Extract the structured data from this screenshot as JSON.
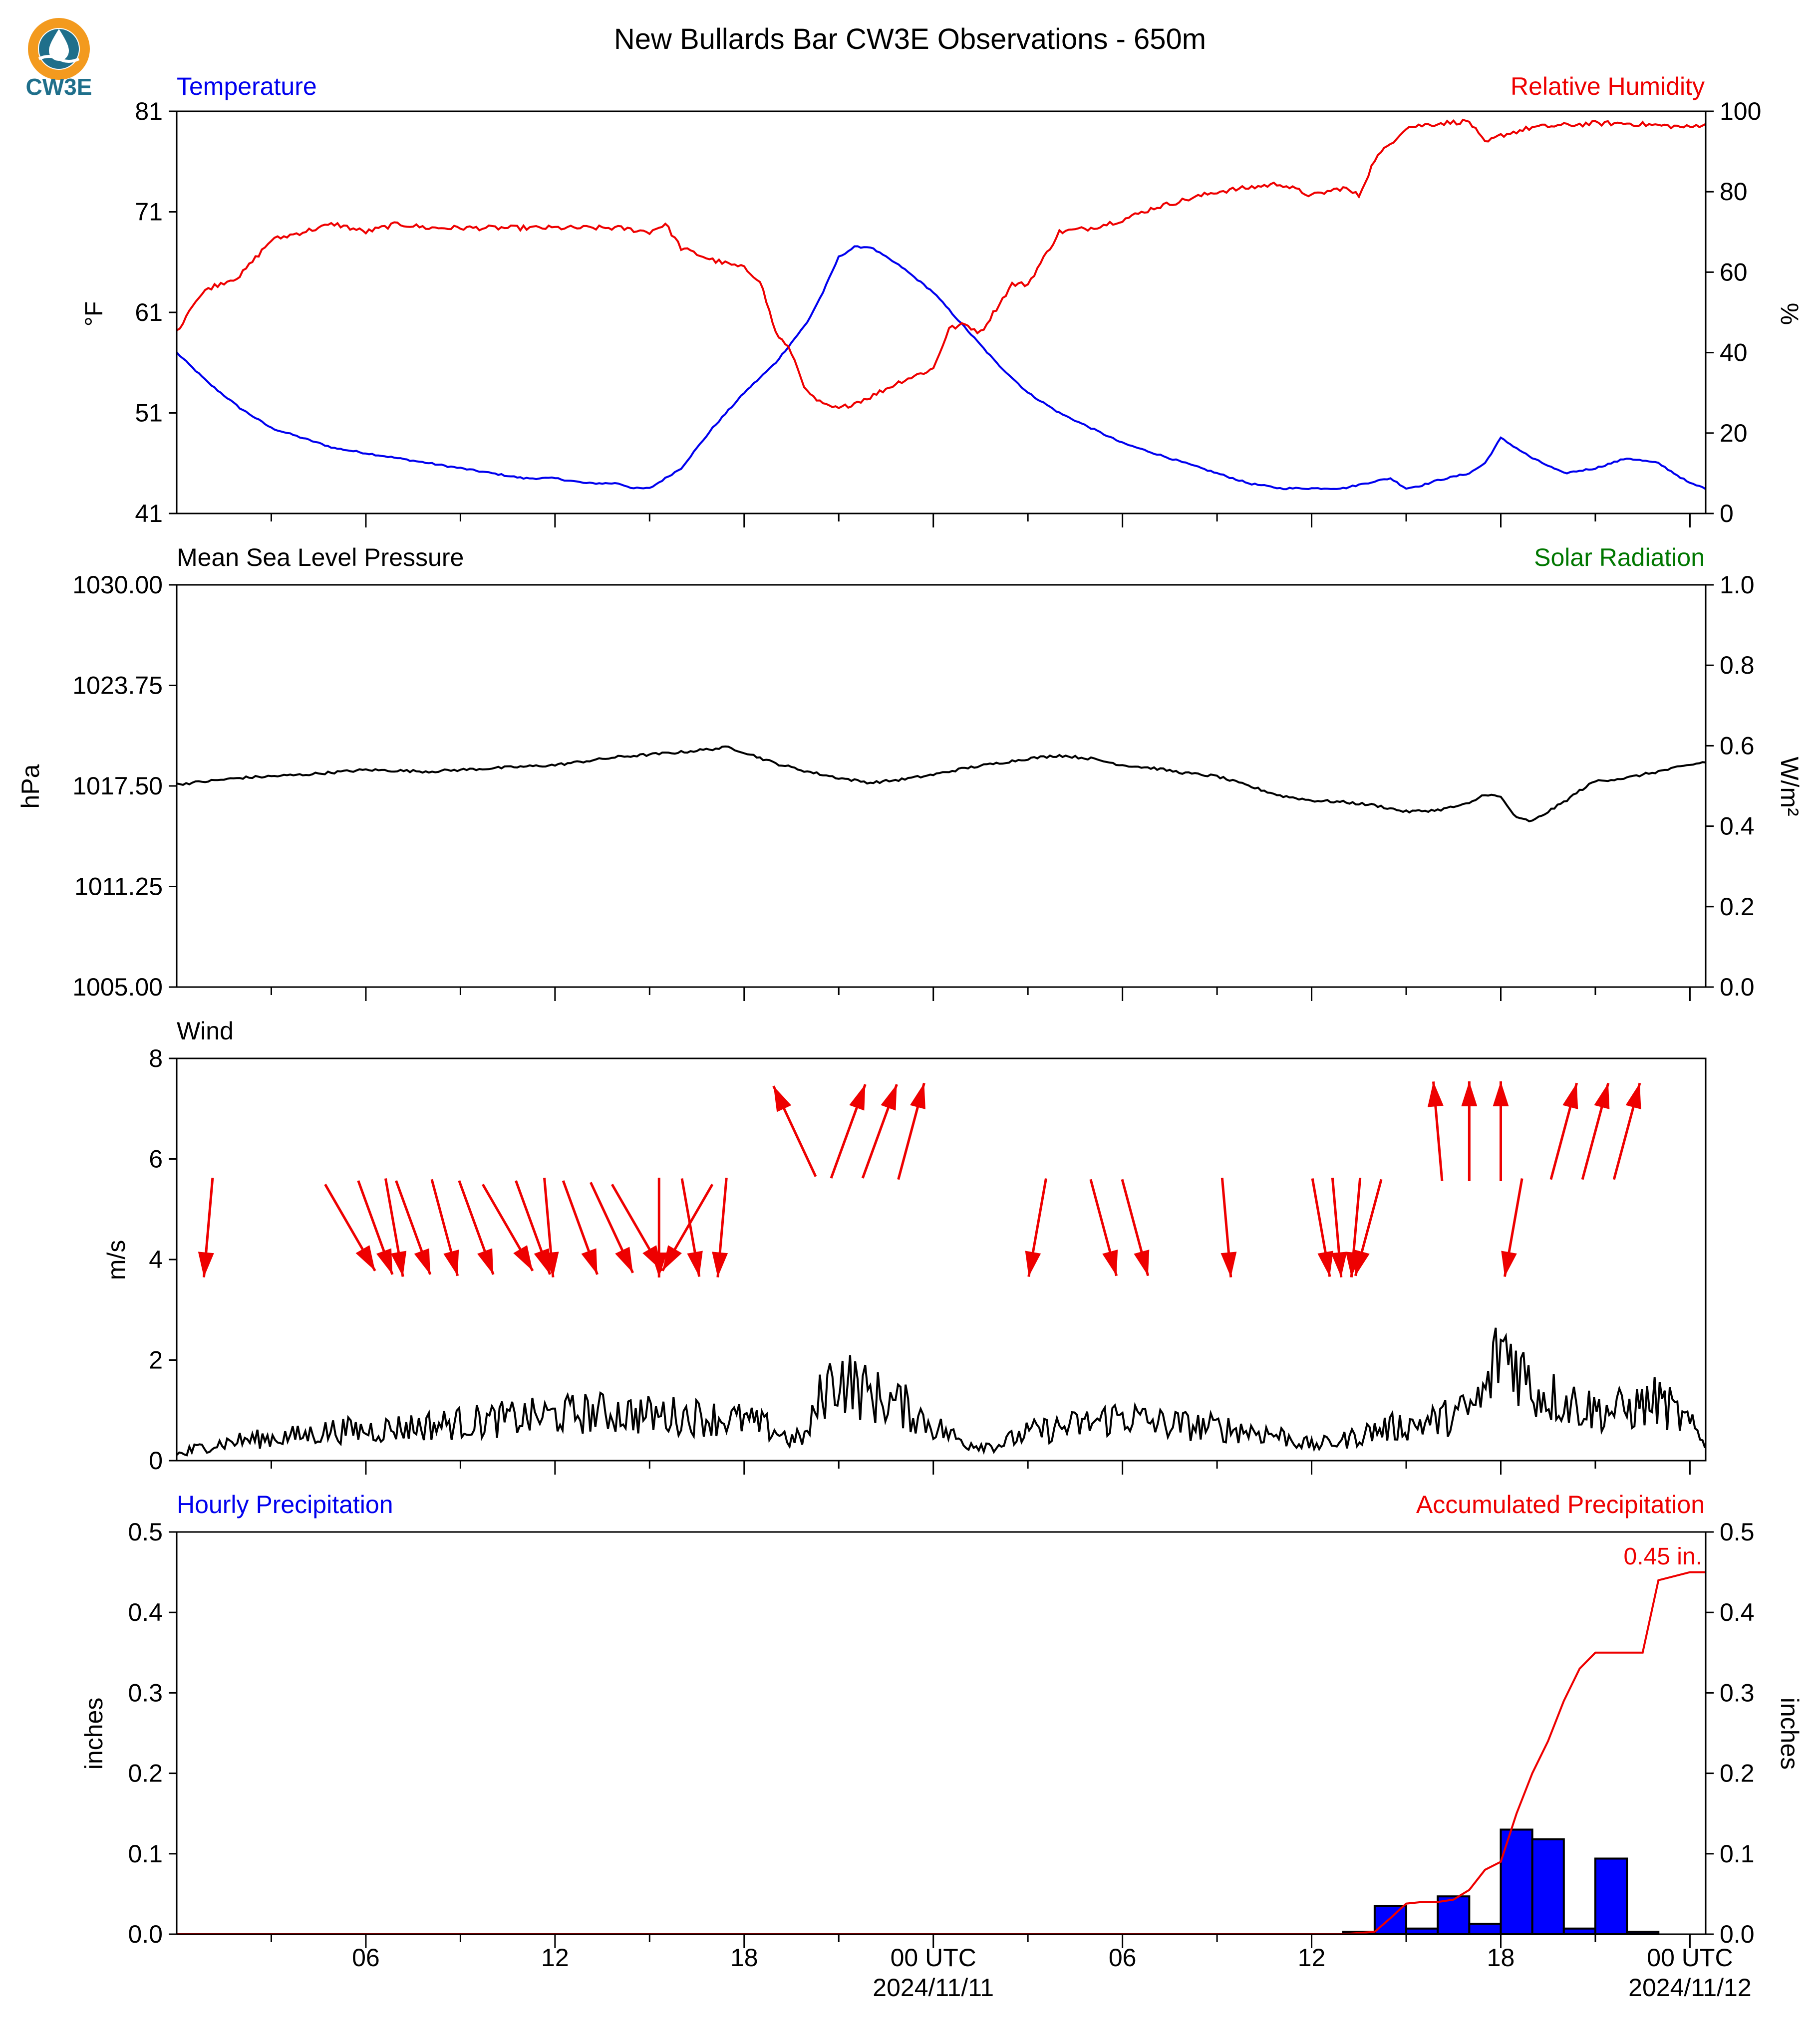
{
  "title": "New Bullards Bar CW3E Observations - 650m",
  "logo": {
    "text": "CW3E",
    "icon": "cw3e-logo-icon",
    "colors": {
      "orange": "#f39a1e",
      "blue": "#1f6f8b",
      "teal": "#2a9fc0"
    }
  },
  "x_ticks": [
    {
      "h": 6,
      "label": "06"
    },
    {
      "h": 12,
      "label": "12"
    },
    {
      "h": 18,
      "label": "18"
    },
    {
      "h": 24,
      "label": "00 UTC",
      "date": "2024/11/11"
    },
    {
      "h": 30,
      "label": "06"
    },
    {
      "h": 36,
      "label": "12"
    },
    {
      "h": 42,
      "label": "18"
    },
    {
      "h": 48,
      "label": "00 UTC",
      "date": "2024/11/12"
    }
  ],
  "colors": {
    "blue": "#0000ee",
    "red": "#ee0000",
    "green": "#007700",
    "black": "#000000",
    "bar_fill": "#0000ff"
  },
  "panels": {
    "temp": {
      "left_label": "Temperature",
      "right_label": "Relative Humidity",
      "left_unit": "°F",
      "right_unit": "%",
      "left_ticks": [
        "41",
        "51",
        "61",
        "71",
        "81"
      ],
      "left_range": [
        41,
        81
      ],
      "right_ticks": [
        "0",
        "20",
        "40",
        "60",
        "80",
        "100"
      ],
      "right_range": [
        0,
        100
      ]
    },
    "pressure": {
      "left_label": "Mean Sea Level Pressure",
      "right_label": "Solar Radiation",
      "left_unit": "hPa",
      "right_unit": "W/m²",
      "left_ticks": [
        "1005.00",
        "1011.25",
        "1017.50",
        "1023.75",
        "1030.00"
      ],
      "left_range": [
        1005,
        1030
      ],
      "right_ticks": [
        "0.0",
        "0.2",
        "0.4",
        "0.6",
        "0.8",
        "1.0"
      ],
      "right_range": [
        0,
        1
      ]
    },
    "wind": {
      "left_label": "Wind",
      "left_unit": "m/s",
      "left_ticks": [
        "0",
        "2",
        "4",
        "6",
        "8"
      ],
      "left_range": [
        0,
        8
      ]
    },
    "precip": {
      "left_label": "Hourly Precipitation",
      "right_label": "Accumulated Precipitation",
      "left_unit": "inches",
      "right_unit": "inches",
      "left_ticks": [
        "0.0",
        "0.1",
        "0.2",
        "0.3",
        "0.4",
        "0.5"
      ],
      "left_range": [
        0,
        0.5
      ],
      "right_ticks": [
        "0.0",
        "0.1",
        "0.2",
        "0.3",
        "0.4",
        "0.5"
      ],
      "right_range": [
        0,
        0.5
      ],
      "total_label": "0.45 in."
    }
  },
  "chart_data": [
    {
      "type": "line",
      "title": "Temperature / Relative Humidity",
      "xlim": [
        0,
        48.5
      ],
      "series": [
        {
          "name": "Temperature",
          "axis": "left",
          "color": "#0000ee",
          "x": [
            0,
            1,
            2,
            3,
            4,
            5,
            6,
            7,
            8,
            9,
            10,
            11,
            12,
            13,
            14,
            14.5,
            15,
            16,
            17,
            18,
            19,
            20,
            20.5,
            21,
            21.5,
            22,
            23,
            24,
            25,
            26,
            27,
            28,
            29,
            30,
            31,
            32,
            33,
            34,
            35,
            36,
            37,
            38,
            38.5,
            39,
            39.5,
            40,
            41,
            41.5,
            42,
            43,
            44,
            45,
            46,
            47,
            48,
            48.5
          ],
          "y": [
            57,
            54,
            51.5,
            49.5,
            48.5,
            47.5,
            47,
            46.5,
            46,
            45.5,
            45,
            44.5,
            44.5,
            44,
            44,
            43.5,
            43.5,
            45.5,
            49.5,
            53,
            56,
            60,
            63,
            66.5,
            67.5,
            67.5,
            65.5,
            63,
            59.5,
            56,
            53,
            51,
            49.5,
            48,
            47,
            46,
            45,
            44,
            43.5,
            43.5,
            43.5,
            44.2,
            44.5,
            43.5,
            43.8,
            44.3,
            45,
            46,
            48.5,
            46.5,
            45,
            45.5,
            46.5,
            46,
            44,
            43.5
          ]
        },
        {
          "name": "Relative Humidity",
          "axis": "right",
          "color": "#ee0000",
          "x": [
            0,
            0.5,
            1,
            2,
            3,
            4,
            5,
            6,
            7,
            8,
            9,
            10,
            11,
            12,
            13,
            14,
            15,
            15.5,
            16,
            17,
            18,
            18.5,
            19,
            19.5,
            20,
            20.5,
            21,
            22,
            23,
            24,
            24.5,
            25,
            25.5,
            26,
            26.5,
            27,
            28,
            29,
            30,
            31,
            32,
            33,
            34,
            35,
            36,
            37,
            37.5,
            38,
            39,
            40,
            41,
            41.5,
            42,
            43,
            44,
            45,
            46,
            47,
            48,
            48.5
          ],
          "y": [
            45,
            52,
            56,
            59,
            68,
            70,
            72,
            70,
            72,
            71,
            71,
            71,
            71,
            71,
            71,
            71,
            70,
            72,
            66,
            63,
            61,
            58,
            45,
            40,
            30,
            27,
            26,
            29,
            33,
            36,
            46,
            47,
            45,
            51,
            57,
            57,
            70,
            71,
            73,
            76,
            78,
            80,
            81,
            82,
            79,
            81,
            79,
            88,
            96,
            97,
            97.5,
            92,
            94,
            96,
            96.5,
            97,
            97,
            96.5,
            96,
            97
          ]
        }
      ]
    },
    {
      "type": "line",
      "title": "Mean Sea Level Pressure / Solar Radiation",
      "xlim": [
        0,
        48.5
      ],
      "series": [
        {
          "name": "Mean Sea Level Pressure",
          "axis": "left",
          "color": "#000000",
          "x": [
            0,
            2,
            4,
            6,
            8,
            10,
            12,
            14,
            16,
            17,
            17.5,
            18,
            19,
            20,
            21,
            22,
            23,
            24,
            25,
            26,
            27,
            28,
            29,
            30,
            31,
            32,
            33,
            34,
            35,
            36,
            37,
            38,
            39,
            40,
            41,
            41.5,
            42,
            42.5,
            43,
            44,
            44.5,
            45,
            46,
            47,
            48,
            48.5
          ],
          "y": [
            1017.6,
            1018,
            1018.2,
            1018.5,
            1018.4,
            1018.6,
            1018.8,
            1019.3,
            1019.6,
            1019.8,
            1019.9,
            1019.6,
            1018.9,
            1018.4,
            1018,
            1017.7,
            1017.9,
            1018.2,
            1018.6,
            1018.9,
            1019.2,
            1019.4,
            1019.2,
            1018.8,
            1018.6,
            1018.3,
            1018.1,
            1017.5,
            1016.9,
            1016.6,
            1016.5,
            1016.3,
            1015.9,
            1016,
            1016.4,
            1017,
            1016.8,
            1015.5,
            1015.3,
            1016.5,
            1017.2,
            1017.8,
            1018,
            1018.4,
            1018.8,
            1019.0
          ]
        }
      ]
    },
    {
      "type": "line",
      "title": "Wind",
      "xlim": [
        0,
        48.5
      ],
      "series": [
        {
          "name": "Wind",
          "axis": "left",
          "color": "#000000",
          "x": [
            0,
            1,
            2,
            3,
            4,
            5,
            6,
            7,
            8,
            9,
            10,
            11,
            12,
            13,
            14,
            15,
            16,
            17,
            18,
            19,
            19.5,
            20,
            20.5,
            21,
            22,
            23,
            24,
            25,
            26,
            27,
            28,
            29,
            30,
            31,
            32,
            33,
            34,
            35,
            36,
            37,
            38,
            39,
            40,
            41,
            41.5,
            42,
            42.5,
            43,
            44,
            45,
            46,
            47,
            48,
            48.5
          ],
          "y": [
            0.1,
            0.3,
            0.4,
            0.45,
            0.5,
            0.6,
            0.6,
            0.65,
            0.7,
            0.75,
            0.8,
            0.85,
            0.9,
            0.95,
            0.95,
            0.9,
            0.9,
            0.85,
            0.8,
            0.6,
            0.4,
            0.5,
            1.4,
            1.7,
            1.3,
            1.1,
            0.7,
            0.35,
            0.3,
            0.55,
            0.65,
            0.75,
            0.9,
            0.75,
            0.7,
            0.65,
            0.6,
            0.5,
            0.3,
            0.4,
            0.6,
            0.7,
            0.8,
            1.0,
            1.3,
            2.3,
            2.0,
            1.4,
            1.2,
            1.0,
            1.0,
            1.2,
            0.7,
            0.3
          ]
        }
      ],
      "wind_barbs": [
        {
          "h": 1.0,
          "dir_deg": 5
        },
        {
          "h": 5.5,
          "dir_deg": 330
        },
        {
          "h": 6.3,
          "dir_deg": 340
        },
        {
          "h": 6.9,
          "dir_deg": 350
        },
        {
          "h": 7.5,
          "dir_deg": 340
        },
        {
          "h": 8.5,
          "dir_deg": 345
        },
        {
          "h": 9.5,
          "dir_deg": 340
        },
        {
          "h": 10.5,
          "dir_deg": 330
        },
        {
          "h": 11.3,
          "dir_deg": 340
        },
        {
          "h": 11.8,
          "dir_deg": 355
        },
        {
          "h": 12.8,
          "dir_deg": 340
        },
        {
          "h": 13.8,
          "dir_deg": 335
        },
        {
          "h": 14.6,
          "dir_deg": 330
        },
        {
          "h": 15.3,
          "dir_deg": 0
        },
        {
          "h": 16.2,
          "dir_deg": 30
        },
        {
          "h": 16.3,
          "dir_deg": 350
        },
        {
          "h": 17.3,
          "dir_deg": 5
        },
        {
          "h": 19.6,
          "dir_deg": 155
        },
        {
          "h": 21.3,
          "dir_deg": 200
        },
        {
          "h": 22.3,
          "dir_deg": 200
        },
        {
          "h": 23.3,
          "dir_deg": 195
        },
        {
          "h": 27.3,
          "dir_deg": 10
        },
        {
          "h": 29.4,
          "dir_deg": 345
        },
        {
          "h": 30.4,
          "dir_deg": 345
        },
        {
          "h": 33.3,
          "dir_deg": 355
        },
        {
          "h": 36.3,
          "dir_deg": 350
        },
        {
          "h": 36.8,
          "dir_deg": 355
        },
        {
          "h": 37.4,
          "dir_deg": 5
        },
        {
          "h": 37.8,
          "dir_deg": 15
        },
        {
          "h": 40.0,
          "dir_deg": 175
        },
        {
          "h": 41.0,
          "dir_deg": 180
        },
        {
          "h": 42.0,
          "dir_deg": 180
        },
        {
          "h": 42.4,
          "dir_deg": 10
        },
        {
          "h": 44.0,
          "dir_deg": 195
        },
        {
          "h": 45.0,
          "dir_deg": 195
        },
        {
          "h": 46.0,
          "dir_deg": 195
        }
      ]
    },
    {
      "type": "bar",
      "title": "Hourly Precipitation / Accumulated Precipitation",
      "xlim": [
        0,
        48.5
      ],
      "bars": {
        "name": "Hourly Precipitation",
        "axis": "left",
        "color": "#0000ff",
        "x": [
          37.5,
          38.5,
          39.5,
          40.5,
          41.5,
          42.5,
          43.5,
          44.5,
          45.5,
          46.5
        ],
        "values": [
          0.003,
          0.035,
          0.007,
          0.047,
          0.013,
          0.13,
          0.118,
          0.007,
          0.094,
          0.003
        ]
      },
      "series": [
        {
          "name": "Accumulated Precipitation",
          "axis": "right",
          "color": "#ee0000",
          "x": [
            0,
            37,
            38,
            38.5,
            39,
            39.5,
            40,
            40.5,
            41,
            41.5,
            42,
            42.5,
            43,
            43.5,
            44,
            44.5,
            45,
            45.5,
            46,
            46.5,
            47,
            48,
            48.5
          ],
          "y": [
            0,
            0,
            0.003,
            0.02,
            0.038,
            0.04,
            0.04,
            0.043,
            0.055,
            0.08,
            0.09,
            0.15,
            0.2,
            0.24,
            0.29,
            0.33,
            0.35,
            0.35,
            0.35,
            0.35,
            0.44,
            0.45,
            0.45
          ]
        }
      ]
    }
  ]
}
